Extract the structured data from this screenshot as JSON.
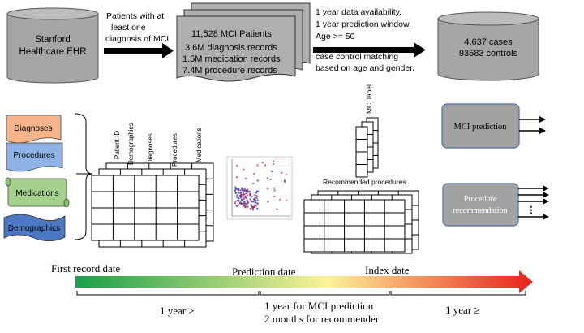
{
  "top_flow": {
    "source": {
      "line1": "Stanford",
      "line2": "Healthcare EHR"
    },
    "filter1": {
      "line1": "Patients with at",
      "line2": "least one",
      "line3": "diagnosis of MCI"
    },
    "records": {
      "line1": "11,528 MCI Patients",
      "line2": "3.6M diagnosis records",
      "line3": "1.5M medication records",
      "line4": "7.4M procedure records"
    },
    "filter2": {
      "line1": "1 year data availability.",
      "line2": "1 year prediction window.",
      "line3": "Age >= 50",
      "line4": "case control matching",
      "line5": "based on age and gender."
    },
    "cohort": {
      "line1": "4,637 cases",
      "line2": "93583 controls"
    }
  },
  "sources": {
    "diagnoses": "Diagnoses",
    "procedures": "Procedures",
    "medications": "Medications",
    "demographics": "Demographics"
  },
  "table_columns": [
    "Patient ID",
    "Demographics",
    "Diagnoses",
    "Procedures",
    "Medications"
  ],
  "mci_label": "MCI label",
  "recommended_procedures": "Recommended procedures",
  "outputs": {
    "mci_prediction": "MCI prediction",
    "procedure_line1": "Procedure",
    "procedure_line2": "recommendation",
    "more": "⋮"
  },
  "timeline": {
    "first_record": "First record date",
    "prediction_date": "Prediction date",
    "index_date": "Index date",
    "span1": "1 year ≥",
    "span2_line1": "1 year for MCI prediction",
    "span2_line2": "2 months for recommender",
    "span3": "1 year ≥"
  },
  "colors": {
    "cylinder": "#a7a6a6",
    "records_box": "#b0afaf",
    "diagnoses": "#f5b48a",
    "procedures": "#8fb3e6",
    "medications": "#a3d18b",
    "demographics": "#4a78c4",
    "output_box": "#a3a2a2",
    "timeline_start": "#1a9e48",
    "timeline_mid": "#fbf29a",
    "timeline_end": "#e8221b"
  }
}
